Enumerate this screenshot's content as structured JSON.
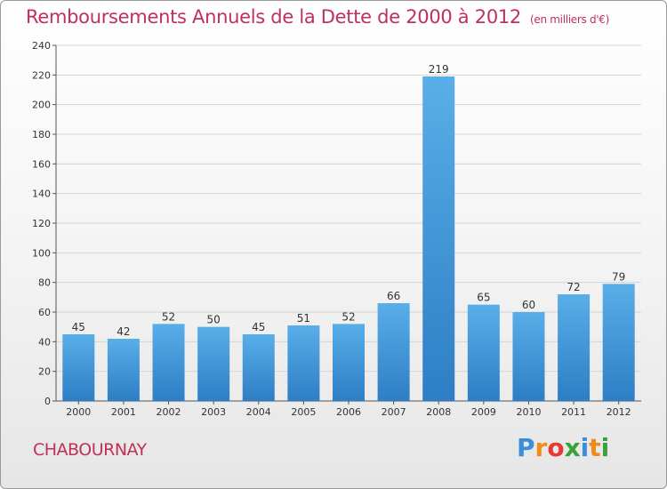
{
  "header": {
    "title": "Remboursements Annuels de la Dette de 2000 à 2012",
    "unit": "(en milliers d'€)"
  },
  "footer": {
    "commune": "CHABOURNAY",
    "logo_letters": [
      "P",
      "r",
      "o",
      "x",
      "i",
      "t",
      "i"
    ],
    "logo_colors": [
      "#3a8fd8",
      "#f08a1c",
      "#e8382f",
      "#3aa23a",
      "#3a8fd8",
      "#f08a1c",
      "#3aa23a"
    ]
  },
  "colors": {
    "bar_light": "#5aaee8",
    "bar_dark": "#2d7ec4",
    "title": "#c0305a"
  },
  "chart_data": {
    "type": "bar",
    "categories": [
      "2000",
      "2001",
      "2002",
      "2003",
      "2004",
      "2005",
      "2006",
      "2007",
      "2008",
      "2009",
      "2010",
      "2011",
      "2012"
    ],
    "values": [
      45,
      42,
      52,
      50,
      45,
      51,
      52,
      66,
      219,
      65,
      60,
      72,
      79
    ],
    "ylim": [
      0,
      240
    ],
    "yticks": [
      0,
      20,
      40,
      60,
      80,
      100,
      120,
      140,
      160,
      180,
      200,
      220,
      240
    ],
    "grid": true
  }
}
